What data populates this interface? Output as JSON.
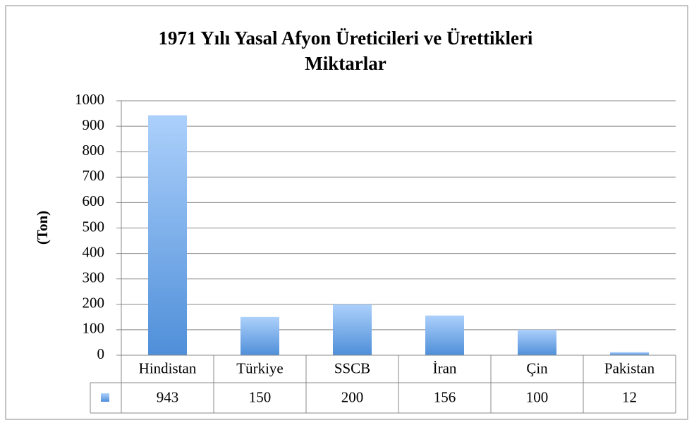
{
  "chart_data": {
    "type": "bar",
    "title": "1971 Yılı Yasal Afyon Üreticileri ve Ürettikleri Miktarlar",
    "title_lines": [
      "1971 Yılı Yasal Afyon Üreticileri ve Ürettikleri",
      "Miktarlar"
    ],
    "y_label": "(Ton)",
    "categories": [
      "Hindistan",
      "Türkiye",
      "SSCB",
      "İran",
      "Çin",
      "Pakistan"
    ],
    "values": [
      943,
      150,
      200,
      156,
      100,
      12
    ],
    "color": "#4f8fd9",
    "ylim": [
      0,
      1000
    ],
    "yticks": [
      0,
      100,
      200,
      300,
      400,
      500,
      600,
      700,
      800,
      900,
      1000
    ],
    "grid": true,
    "data_table": true
  }
}
